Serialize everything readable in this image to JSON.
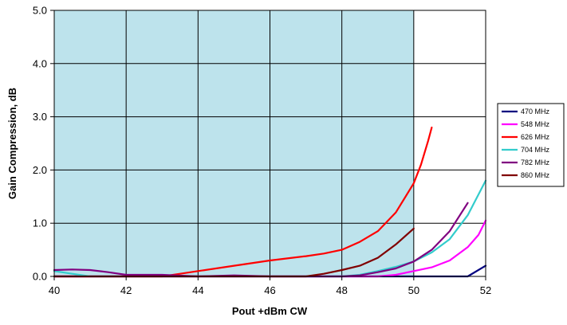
{
  "chart_data": {
    "type": "line",
    "title": "",
    "xlabel": "Pout +dBm CW",
    "ylabel": "Gain Compression, dB",
    "xlim": [
      40,
      52
    ],
    "ylim": [
      0,
      5
    ],
    "x_ticks": [
      "40",
      "42",
      "44",
      "46",
      "48",
      "50",
      "52"
    ],
    "y_ticks": [
      "0.0",
      "1.0",
      "2.0",
      "3.0",
      "4.0",
      "5.0"
    ],
    "grid": true,
    "shaded_region": {
      "x": [
        40,
        50
      ],
      "color": "#bde3ec"
    },
    "legend_position": "right",
    "series": [
      {
        "name": "470 MHz",
        "color": "#00007f",
        "x": [
          40,
          41,
          42,
          43,
          44,
          45,
          46,
          47,
          48,
          49,
          50,
          50.5,
          51,
          51.5,
          52
        ],
        "y": [
          0.0,
          0.0,
          0.0,
          0.0,
          0.0,
          0.0,
          0.0,
          0.0,
          0.0,
          0.0,
          0.0,
          0.0,
          0.0,
          0.0,
          0.2
        ]
      },
      {
        "name": "548 MHz",
        "color": "#ff00ff",
        "x": [
          40,
          41,
          42,
          43,
          44,
          45,
          46,
          47,
          48,
          49,
          49.5,
          50,
          50.5,
          51,
          51.5,
          51.8,
          52
        ],
        "y": [
          0.0,
          0.0,
          0.0,
          0.0,
          0.0,
          0.0,
          0.0,
          0.0,
          0.0,
          0.0,
          0.03,
          0.1,
          0.17,
          0.3,
          0.55,
          0.78,
          1.05
        ]
      },
      {
        "name": "626 MHz",
        "color": "#ff0000",
        "x": [
          40,
          42,
          43,
          43.5,
          44,
          45,
          46,
          47,
          47.5,
          48,
          48.5,
          49,
          49.5,
          50,
          50.2,
          50.4,
          50.5
        ],
        "y": [
          0.0,
          0.0,
          0.0,
          0.05,
          0.1,
          0.2,
          0.3,
          0.38,
          0.43,
          0.5,
          0.65,
          0.85,
          1.2,
          1.75,
          2.1,
          2.55,
          2.8
        ]
      },
      {
        "name": "704 MHz",
        "color": "#33cccc",
        "x": [
          40,
          40.5,
          41,
          42,
          43,
          44,
          45,
          46,
          47,
          48,
          48.5,
          49,
          49.5,
          50,
          50.5,
          51,
          51.5,
          52
        ],
        "y": [
          0.1,
          0.05,
          0.0,
          0.0,
          0.0,
          0.0,
          0.0,
          0.0,
          0.0,
          0.0,
          0.03,
          0.1,
          0.18,
          0.28,
          0.45,
          0.7,
          1.15,
          1.8
        ]
      },
      {
        "name": "782 MHz",
        "color": "#800080",
        "x": [
          40,
          40.5,
          41,
          41.5,
          42,
          43,
          44,
          45,
          46,
          47,
          48,
          48.5,
          49,
          49.5,
          50,
          50.5,
          51,
          51.5
        ],
        "y": [
          0.12,
          0.13,
          0.12,
          0.08,
          0.03,
          0.03,
          0.0,
          0.02,
          0.0,
          0.0,
          0.0,
          0.02,
          0.08,
          0.15,
          0.28,
          0.5,
          0.85,
          1.38
        ]
      },
      {
        "name": "860 MHz",
        "color": "#800000",
        "x": [
          40,
          41,
          42,
          43,
          44,
          45,
          46,
          47,
          47.5,
          48,
          48.5,
          49,
          49.5,
          50
        ],
        "y": [
          0.0,
          0.0,
          0.0,
          0.0,
          0.0,
          0.0,
          0.0,
          0.0,
          0.05,
          0.12,
          0.2,
          0.35,
          0.6,
          0.9
        ]
      }
    ]
  }
}
